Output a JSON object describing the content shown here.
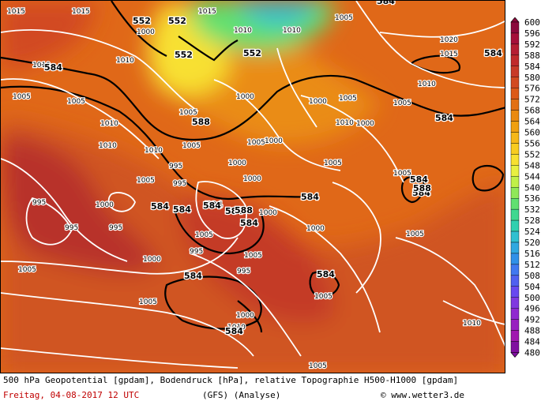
{
  "legend": {
    "unit_levels": [
      "600",
      "596",
      "592",
      "588",
      "584",
      "580",
      "576",
      "572",
      "568",
      "564",
      "560",
      "556",
      "552",
      "548",
      "544",
      "540",
      "536",
      "532",
      "528",
      "524",
      "520",
      "516",
      "512",
      "508",
      "504",
      "500",
      "496",
      "492",
      "488",
      "484",
      "480"
    ],
    "colors": [
      "#8b0a3c",
      "#a5103a",
      "#b51e33",
      "#c02a2c",
      "#c83a28",
      "#d24a20",
      "#dc5a18",
      "#e27014",
      "#ea8a10",
      "#f0a010",
      "#f6b818",
      "#f8cc20",
      "#f8e030",
      "#e8f040",
      "#c0f048",
      "#90e858",
      "#60e070",
      "#40d890",
      "#30d0b0",
      "#30c0d0",
      "#30a8e0",
      "#3090e8",
      "#4078f0",
      "#5060f0",
      "#6848f0",
      "#8038e0",
      "#9028d0",
      "#9820c0",
      "#a018b0",
      "#8010a0"
    ]
  },
  "map": {
    "isobar_labels": [
      {
        "t": "1015"
      },
      {
        "t": "1015"
      },
      {
        "t": "1000"
      },
      {
        "t": "1015"
      },
      {
        "t": "1010"
      },
      {
        "t": "1010"
      },
      {
        "t": "1005"
      },
      {
        "t": "1020"
      },
      {
        "t": "1015"
      },
      {
        "t": "1010"
      },
      {
        "t": "1010"
      },
      {
        "t": "1005"
      },
      {
        "t": "1005"
      },
      {
        "t": "1010"
      },
      {
        "t": "1005"
      },
      {
        "t": "1010"
      },
      {
        "t": "1000"
      },
      {
        "t": "1010"
      },
      {
        "t": "1005"
      },
      {
        "t": "1000"
      },
      {
        "t": "1000"
      },
      {
        "t": "1005"
      },
      {
        "t": "1000"
      },
      {
        "t": "1010"
      },
      {
        "t": "1000"
      },
      {
        "t": "995"
      },
      {
        "t": "995"
      },
      {
        "t": "1000"
      },
      {
        "t": "995"
      },
      {
        "t": "1000"
      },
      {
        "t": "1000"
      },
      {
        "t": "995"
      },
      {
        "t": "1000"
      },
      {
        "t": "1005"
      },
      {
        "t": "995"
      },
      {
        "t": "1005"
      },
      {
        "t": "995"
      },
      {
        "t": "1000"
      },
      {
        "t": "1005"
      },
      {
        "t": "1005"
      },
      {
        "t": "1000"
      },
      {
        "t": "1005"
      },
      {
        "t": "1010"
      },
      {
        "t": "1005"
      },
      {
        "t": "1010"
      },
      {
        "t": "1005"
      },
      {
        "t": "1005"
      },
      {
        "t": "1005"
      },
      {
        "t": "1005"
      },
      {
        "t": "1010"
      },
      {
        "t": "1005"
      },
      {
        "t": "1005"
      },
      {
        "t": "995"
      }
    ],
    "height_labels": [
      {
        "t": "552"
      },
      {
        "t": "552"
      },
      {
        "t": "552"
      },
      {
        "t": "552"
      },
      {
        "t": "588"
      },
      {
        "t": "584"
      },
      {
        "t": "584"
      },
      {
        "t": "584"
      },
      {
        "t": "584"
      },
      {
        "t": "584"
      },
      {
        "t": "584"
      },
      {
        "t": "584"
      },
      {
        "t": "584"
      },
      {
        "t": "584"
      },
      {
        "t": "584"
      },
      {
        "t": "584"
      },
      {
        "t": "584"
      },
      {
        "t": "588"
      },
      {
        "t": "584"
      },
      {
        "t": "584"
      },
      {
        "t": "588"
      },
      {
        "t": "584"
      },
      {
        "t": "584"
      }
    ]
  },
  "footer": {
    "line1": "500 hPa Geopotential [gpdam], Bodendruck [hPa], relative Topographie H500-H1000 [gpdam]",
    "date_line": "Freitag, 04-08-2017  12 UTC",
    "model": "(GFS)  (Analyse)",
    "copyright": "© www.wetter3.de"
  }
}
